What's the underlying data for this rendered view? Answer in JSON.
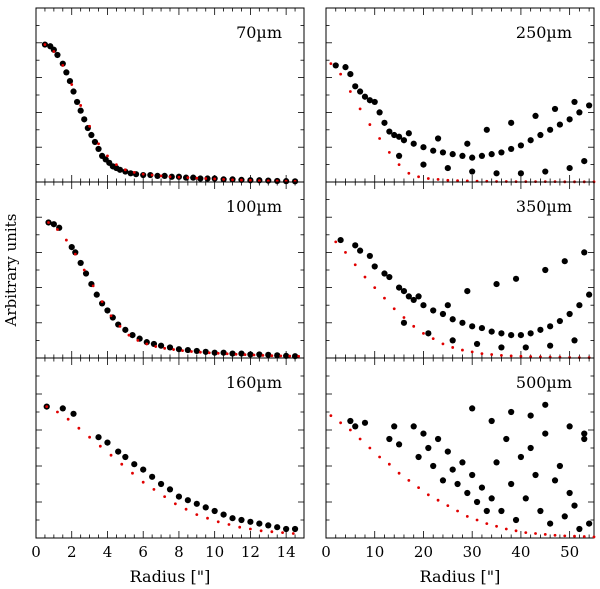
{
  "figure": {
    "ylabel": "Arbitrary units",
    "xlabel_left": "Radius [\"]",
    "xlabel_right": "Radius [\"]",
    "xticks_left": [
      "0",
      "2",
      "4",
      "6",
      "8",
      "10",
      "12",
      "14"
    ],
    "xticks_right": [
      "0",
      "10",
      "20",
      "30",
      "40",
      "50"
    ]
  },
  "colors": {
    "observed": "#000000",
    "model": "#e00000",
    "axis": "#000000"
  },
  "chart_data": [
    {
      "type": "scatter",
      "panel": "70um",
      "label": "70µm",
      "xlim": [
        0,
        15
      ],
      "ylim": [
        0,
        1.0
      ],
      "series": [
        {
          "name": "observed",
          "color": "#000000",
          "x": [
            0.5,
            0.8,
            1.0,
            1.2,
            1.5,
            1.7,
            1.9,
            2.1,
            2.3,
            2.5,
            2.7,
            2.9,
            3.1,
            3.3,
            3.5,
            3.7,
            3.9,
            4.1,
            4.3,
            4.5,
            4.7,
            5.0,
            5.3,
            5.6,
            6.0,
            6.4,
            6.8,
            7.2,
            7.6,
            8.0,
            8.4,
            8.8,
            9.2,
            9.6,
            10.0,
            10.5,
            11.0,
            11.5,
            12.0,
            12.5,
            13.0,
            13.5,
            14.0,
            14.5
          ],
          "y": [
            0.79,
            0.78,
            0.76,
            0.73,
            0.68,
            0.63,
            0.58,
            0.52,
            0.46,
            0.41,
            0.36,
            0.31,
            0.27,
            0.23,
            0.19,
            0.15,
            0.13,
            0.11,
            0.09,
            0.08,
            0.07,
            0.06,
            0.05,
            0.045,
            0.04,
            0.04,
            0.035,
            0.035,
            0.03,
            0.03,
            0.025,
            0.025,
            0.02,
            0.02,
            0.02,
            0.015,
            0.015,
            0.012,
            0.01,
            0.01,
            0.008,
            0.006,
            0.005,
            0.004
          ]
        },
        {
          "name": "model",
          "color": "#e00000",
          "x": [
            0.5,
            1.0,
            1.5,
            2.0,
            2.5,
            3.0,
            3.5,
            4.0,
            4.5,
            5.0,
            5.5,
            6.0,
            6.5,
            7.0,
            7.5,
            8.0,
            8.5,
            9.0,
            9.5,
            10.0,
            10.5,
            11.0,
            11.5,
            12.0,
            12.5,
            13.0,
            13.5,
            14.0,
            14.5
          ],
          "y": [
            0.79,
            0.75,
            0.67,
            0.56,
            0.44,
            0.32,
            0.22,
            0.15,
            0.1,
            0.07,
            0.055,
            0.045,
            0.04,
            0.035,
            0.03,
            0.028,
            0.025,
            0.022,
            0.02,
            0.018,
            0.015,
            0.013,
            0.011,
            0.01,
            0.008,
            0.007,
            0.006,
            0.005,
            0.004
          ]
        }
      ]
    },
    {
      "type": "scatter",
      "panel": "250um",
      "label": "250µm",
      "xlim": [
        0,
        55
      ],
      "ylim": [
        0,
        1.0
      ],
      "series": [
        {
          "name": "observed",
          "color": "#000000",
          "x": [
            2,
            4,
            5,
            6,
            7,
            8,
            9,
            10,
            11,
            12,
            13,
            14,
            15,
            16,
            18,
            20,
            22,
            24,
            26,
            28,
            30,
            32,
            34,
            36,
            38,
            40,
            42,
            44,
            46,
            48,
            50,
            52,
            54,
            15,
            20,
            25,
            30,
            35,
            40,
            45,
            50,
            53,
            17,
            23,
            29,
            33,
            38,
            43,
            47,
            51
          ],
          "y": [
            0.67,
            0.66,
            0.62,
            0.55,
            0.52,
            0.49,
            0.47,
            0.46,
            0.4,
            0.34,
            0.29,
            0.27,
            0.26,
            0.24,
            0.22,
            0.2,
            0.18,
            0.17,
            0.16,
            0.15,
            0.14,
            0.15,
            0.16,
            0.17,
            0.19,
            0.21,
            0.24,
            0.27,
            0.3,
            0.33,
            0.36,
            0.4,
            0.44,
            0.15,
            0.1,
            0.08,
            0.06,
            0.05,
            0.05,
            0.06,
            0.08,
            0.12,
            0.28,
            0.25,
            0.22,
            0.3,
            0.34,
            0.38,
            0.42,
            0.46
          ]
        },
        {
          "name": "model",
          "color": "#e00000",
          "x": [
            1,
            3,
            5,
            7,
            9,
            11,
            13,
            15,
            17,
            19,
            21,
            23,
            25,
            27,
            29,
            31,
            33,
            35,
            37,
            39,
            41,
            43,
            45,
            47,
            49,
            51,
            53,
            55
          ],
          "y": [
            0.68,
            0.62,
            0.52,
            0.42,
            0.33,
            0.25,
            0.17,
            0.1,
            0.05,
            0.03,
            0.02,
            0.015,
            0.01,
            0.008,
            0.006,
            0.005,
            0.004,
            0.003,
            0.003,
            0.002,
            0.002,
            0.002,
            0.002,
            0.002,
            0.001,
            0.001,
            0.001,
            0.001
          ]
        }
      ]
    },
    {
      "type": "scatter",
      "panel": "100um",
      "label": "100µm",
      "xlim": [
        0,
        15
      ],
      "ylim": [
        0,
        1.0
      ],
      "series": [
        {
          "name": "observed",
          "color": "#000000",
          "x": [
            0.7,
            1.0,
            1.3,
            2.0,
            2.2,
            2.5,
            2.8,
            3.1,
            3.4,
            3.7,
            4.0,
            4.3,
            4.6,
            5.0,
            5.4,
            5.8,
            6.2,
            6.6,
            7.0,
            7.5,
            8.0,
            8.5,
            9.0,
            9.5,
            10.0,
            10.5,
            11.0,
            11.5,
            12.0,
            12.5,
            13.0,
            13.5,
            14.0,
            14.5
          ],
          "y": [
            0.77,
            0.76,
            0.74,
            0.63,
            0.6,
            0.54,
            0.48,
            0.42,
            0.36,
            0.31,
            0.27,
            0.23,
            0.19,
            0.16,
            0.13,
            0.11,
            0.09,
            0.08,
            0.07,
            0.06,
            0.05,
            0.045,
            0.04,
            0.035,
            0.03,
            0.03,
            0.025,
            0.025,
            0.02,
            0.02,
            0.018,
            0.015,
            0.012,
            0.01
          ]
        },
        {
          "name": "model",
          "color": "#e00000",
          "x": [
            0.7,
            1.2,
            1.7,
            2.2,
            2.7,
            3.2,
            3.7,
            4.2,
            4.7,
            5.2,
            5.7,
            6.2,
            6.7,
            7.2,
            7.7,
            8.2,
            8.7,
            9.2,
            9.7,
            10.2,
            10.7,
            11.2,
            11.7,
            12.2,
            12.7,
            13.2,
            13.7,
            14.2,
            14.7
          ],
          "y": [
            0.77,
            0.73,
            0.67,
            0.59,
            0.5,
            0.41,
            0.32,
            0.24,
            0.18,
            0.13,
            0.1,
            0.08,
            0.065,
            0.055,
            0.048,
            0.042,
            0.037,
            0.033,
            0.03,
            0.027,
            0.024,
            0.021,
            0.019,
            0.017,
            0.015,
            0.013,
            0.012,
            0.011,
            0.01
          ]
        }
      ]
    },
    {
      "type": "scatter",
      "panel": "350um",
      "label": "350µm",
      "xlim": [
        0,
        55
      ],
      "ylim": [
        0,
        1.0
      ],
      "series": [
        {
          "name": "observed",
          "color": "#000000",
          "x": [
            3,
            6,
            7,
            9,
            10,
            12,
            13,
            15,
            16,
            17,
            18,
            20,
            22,
            24,
            26,
            28,
            30,
            32,
            34,
            36,
            38,
            40,
            42,
            44,
            46,
            48,
            50,
            52,
            54,
            16,
            21,
            26,
            31,
            36,
            41,
            46,
            51,
            19,
            25,
            29,
            35,
            39,
            45,
            49,
            53
          ],
          "y": [
            0.67,
            0.64,
            0.61,
            0.58,
            0.52,
            0.48,
            0.46,
            0.4,
            0.38,
            0.35,
            0.33,
            0.3,
            0.27,
            0.25,
            0.22,
            0.2,
            0.18,
            0.17,
            0.15,
            0.14,
            0.13,
            0.13,
            0.14,
            0.16,
            0.18,
            0.21,
            0.25,
            0.3,
            0.36,
            0.2,
            0.14,
            0.1,
            0.08,
            0.06,
            0.06,
            0.07,
            0.1,
            0.35,
            0.3,
            0.38,
            0.42,
            0.45,
            0.5,
            0.55,
            0.6
          ]
        },
        {
          "name": "model",
          "color": "#e00000",
          "x": [
            2,
            4,
            6,
            8,
            10,
            12,
            14,
            16,
            18,
            20,
            22,
            24,
            26,
            28,
            30,
            32,
            34,
            36,
            38,
            40,
            42,
            44,
            46,
            48,
            50,
            52,
            54
          ],
          "y": [
            0.66,
            0.6,
            0.53,
            0.46,
            0.4,
            0.34,
            0.28,
            0.23,
            0.18,
            0.14,
            0.11,
            0.08,
            0.06,
            0.045,
            0.035,
            0.025,
            0.02,
            0.015,
            0.012,
            0.01,
            0.008,
            0.006,
            0.005,
            0.004,
            0.003,
            0.002,
            0.002
          ]
        }
      ]
    },
    {
      "type": "scatter",
      "panel": "160um",
      "label": "160µm",
      "xlim": [
        0,
        15
      ],
      "ylim": [
        0,
        1.0
      ],
      "series": [
        {
          "name": "observed",
          "color": "#000000",
          "x": [
            0.6,
            1.5,
            2.1,
            3.5,
            4.0,
            4.6,
            5.0,
            5.5,
            6.0,
            6.5,
            7.0,
            7.5,
            8.0,
            8.5,
            9.0,
            9.5,
            10.0,
            10.5,
            11.0,
            11.5,
            12.0,
            12.5,
            13.0,
            13.5,
            14.0,
            14.5
          ],
          "y": [
            0.73,
            0.72,
            0.69,
            0.56,
            0.53,
            0.48,
            0.45,
            0.41,
            0.38,
            0.34,
            0.3,
            0.27,
            0.23,
            0.21,
            0.19,
            0.17,
            0.15,
            0.13,
            0.11,
            0.1,
            0.09,
            0.08,
            0.07,
            0.06,
            0.05,
            0.05
          ]
        },
        {
          "name": "model",
          "color": "#e00000",
          "x": [
            0.6,
            1.2,
            1.8,
            2.4,
            3.0,
            3.6,
            4.2,
            4.8,
            5.4,
            6.0,
            6.6,
            7.2,
            7.8,
            8.4,
            9.0,
            9.6,
            10.2,
            10.8,
            11.4,
            12.0,
            12.6,
            13.2,
            13.8,
            14.4
          ],
          "y": [
            0.73,
            0.7,
            0.66,
            0.61,
            0.56,
            0.51,
            0.46,
            0.41,
            0.36,
            0.31,
            0.27,
            0.23,
            0.19,
            0.16,
            0.13,
            0.11,
            0.09,
            0.075,
            0.06,
            0.05,
            0.04,
            0.035,
            0.03,
            0.025
          ]
        }
      ]
    },
    {
      "type": "scatter",
      "panel": "500um",
      "label": "500µm",
      "xlim": [
        0,
        55
      ],
      "ylim": [
        0,
        1.0
      ],
      "series": [
        {
          "name": "observed",
          "color": "#000000",
          "x": [
            5,
            6,
            8,
            13,
            14,
            15,
            18,
            19,
            20,
            21,
            22,
            23,
            24,
            25,
            26,
            27,
            28,
            29,
            30,
            31,
            32,
            33,
            34,
            35,
            36,
            37,
            38,
            39,
            40,
            41,
            42,
            43,
            44,
            45,
            46,
            47,
            48,
            49,
            50,
            51,
            52,
            53,
            54,
            30,
            38,
            45,
            50,
            53,
            34,
            42
          ],
          "y": [
            0.65,
            0.62,
            0.64,
            0.55,
            0.62,
            0.52,
            0.62,
            0.45,
            0.58,
            0.5,
            0.4,
            0.55,
            0.32,
            0.48,
            0.38,
            0.3,
            0.42,
            0.25,
            0.35,
            0.2,
            0.28,
            0.15,
            0.22,
            0.42,
            0.15,
            0.55,
            0.3,
            0.1,
            0.45,
            0.22,
            0.68,
            0.35,
            0.15,
            0.58,
            0.08,
            0.32,
            0.4,
            0.12,
            0.25,
            0.18,
            0.05,
            0.55,
            0.08,
            0.72,
            0.7,
            0.74,
            0.62,
            0.58,
            0.65,
            0.5
          ]
        },
        {
          "name": "model",
          "color": "#e00000",
          "x": [
            1,
            3,
            5,
            7,
            9,
            11,
            13,
            15,
            17,
            19,
            21,
            23,
            25,
            27,
            29,
            31,
            33,
            35,
            37,
            39,
            41,
            43,
            45,
            47,
            49,
            51,
            53,
            55
          ],
          "y": [
            0.68,
            0.64,
            0.6,
            0.55,
            0.5,
            0.45,
            0.41,
            0.36,
            0.32,
            0.28,
            0.24,
            0.21,
            0.18,
            0.15,
            0.12,
            0.1,
            0.08,
            0.065,
            0.05,
            0.04,
            0.03,
            0.025,
            0.02,
            0.015,
            0.012,
            0.01,
            0.008,
            0.006
          ]
        }
      ]
    }
  ]
}
